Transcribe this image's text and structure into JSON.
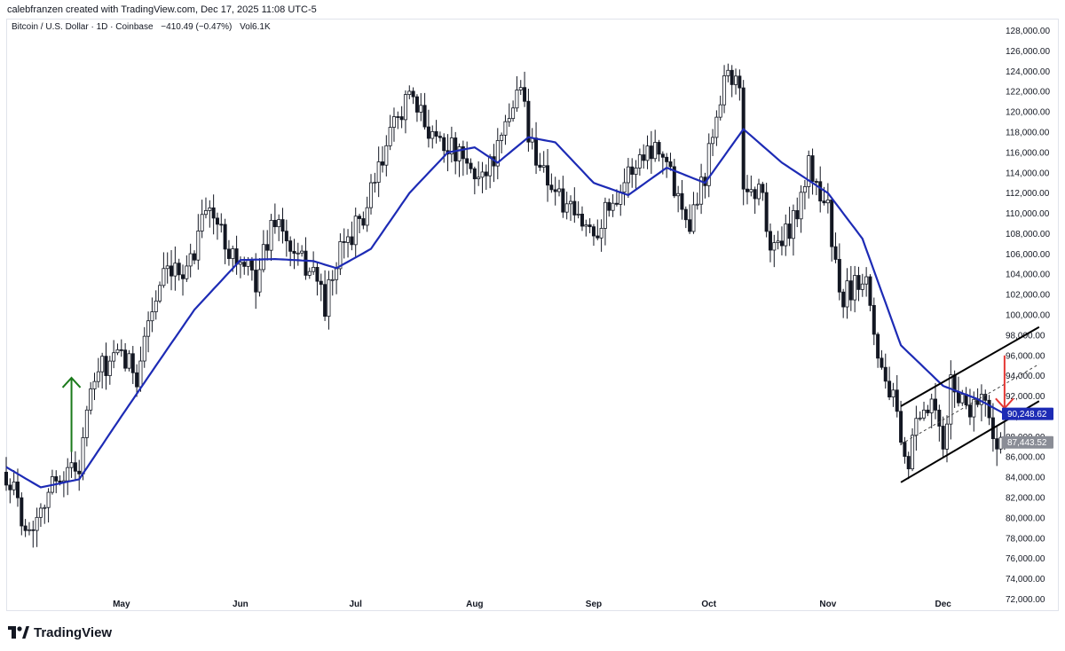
{
  "header": {
    "credit": "calebfranzen created with TradingView.com, Dec 17, 2025 11:08 UTC-5"
  },
  "legend": {
    "symbol": "Bitcoin / U.S. Dollar · 1D · Coinbase",
    "change": "−410.49 (−0.47%)",
    "volume_label": "Vol",
    "volume_value": "6.1K"
  },
  "footer": {
    "brand": "TradingView"
  },
  "colors": {
    "up": "#131722",
    "down": "#131722",
    "ma": "#1d2bb5",
    "arrow_up": "#1b7a1b",
    "arrow_down": "#e53935",
    "ma_tag": "#1d2bb5",
    "price_tag": "#8a8d96"
  },
  "price_tags": {
    "ma": "90,248.62",
    "last": "87,443.52"
  },
  "chart_data": {
    "type": "candlestick",
    "title": "",
    "x_ticks": [
      "May",
      "Jun",
      "Jul",
      "Aug",
      "Sep",
      "Oct",
      "Nov",
      "Dec"
    ],
    "y_ticks": [
      "72,000.00",
      "74,000.00",
      "76,000.00",
      "78,000.00",
      "80,000.00",
      "82,000.00",
      "84,000.00",
      "86,000.00",
      "88,000.00",
      "90,000.00",
      "92,000.00",
      "94,000.00",
      "96,000.00",
      "98,000.00",
      "100,000.00",
      "102,000.00",
      "104,000.00",
      "106,000.00",
      "108,000.00",
      "110,000.00",
      "112,000.00",
      "114,000.00",
      "116,000.00",
      "118,000.00",
      "120,000.00",
      "122,000.00",
      "124,000.00",
      "126,000.00",
      "128,000.00"
    ],
    "ylim": [
      70900,
      129100
    ],
    "date_range": [
      "2025-04-01",
      "2025-12-17"
    ],
    "close_path": [
      [
        "2025-04-01",
        84500
      ],
      [
        "2025-04-07",
        78500
      ],
      [
        "2025-04-10",
        81500
      ],
      [
        "2025-04-15",
        84300
      ],
      [
        "2025-04-20",
        85200
      ],
      [
        "2025-04-22",
        90500
      ],
      [
        "2025-04-25",
        94500
      ],
      [
        "2025-05-01",
        95800
      ],
      [
        "2025-05-05",
        94200
      ],
      [
        "2025-05-08",
        99500
      ],
      [
        "2025-05-12",
        103500
      ],
      [
        "2025-05-15",
        103800
      ],
      [
        "2025-05-20",
        106000
      ],
      [
        "2025-05-22",
        111000
      ],
      [
        "2025-05-25",
        109500
      ],
      [
        "2025-06-01",
        104800
      ],
      [
        "2025-06-05",
        103500
      ],
      [
        "2025-06-10",
        109800
      ],
      [
        "2025-06-15",
        105500
      ],
      [
        "2025-06-20",
        104500
      ],
      [
        "2025-06-23",
        101000
      ],
      [
        "2025-06-28",
        107200
      ],
      [
        "2025-07-03",
        109500
      ],
      [
        "2025-07-10",
        117500
      ],
      [
        "2025-07-14",
        121500
      ],
      [
        "2025-07-20",
        118500
      ],
      [
        "2025-07-25",
        116800
      ],
      [
        "2025-08-01",
        113500
      ],
      [
        "2025-08-04",
        114500
      ],
      [
        "2025-08-08",
        116800
      ],
      [
        "2025-08-13",
        123300
      ],
      [
        "2025-08-15",
        117500
      ],
      [
        "2025-08-20",
        113500
      ],
      [
        "2025-08-25",
        110200
      ],
      [
        "2025-09-01",
        108200
      ],
      [
        "2025-09-05",
        110800
      ],
      [
        "2025-09-10",
        113800
      ],
      [
        "2025-09-14",
        116000
      ],
      [
        "2025-09-18",
        117000
      ],
      [
        "2025-09-22",
        112800
      ],
      [
        "2025-09-26",
        109500
      ],
      [
        "2025-09-30",
        114000
      ],
      [
        "2025-10-03",
        120500
      ],
      [
        "2025-10-06",
        124500
      ],
      [
        "2025-10-09",
        121500
      ],
      [
        "2025-10-10",
        112800
      ],
      [
        "2025-10-15",
        111800
      ],
      [
        "2025-10-17",
        106500
      ],
      [
        "2025-10-22",
        108000
      ],
      [
        "2025-10-27",
        114500
      ],
      [
        "2025-11-01",
        110500
      ],
      [
        "2025-11-04",
        101500
      ],
      [
        "2025-11-07",
        102500
      ],
      [
        "2025-11-11",
        104500
      ],
      [
        "2025-11-14",
        96000
      ],
      [
        "2025-11-18",
        91500
      ],
      [
        "2025-11-21",
        84800
      ],
      [
        "2025-11-24",
        88500
      ],
      [
        "2025-11-28",
        91200
      ],
      [
        "2025-12-01",
        86500
      ],
      [
        "2025-12-03",
        93200
      ],
      [
        "2025-12-08",
        90800
      ],
      [
        "2025-12-11",
        92500
      ],
      [
        "2025-12-14",
        88200
      ],
      [
        "2025-12-17",
        87443
      ]
    ],
    "series": [
      {
        "name": "",
        "type": "moving_average",
        "points": [
          [
            "2025-04-01",
            85000
          ],
          [
            "2025-04-10",
            83000
          ],
          [
            "2025-04-20",
            83800
          ],
          [
            "2025-05-01",
            90000
          ],
          [
            "2025-05-10",
            95000
          ],
          [
            "2025-05-20",
            100500
          ],
          [
            "2025-06-01",
            105400
          ],
          [
            "2025-06-10",
            105500
          ],
          [
            "2025-06-20",
            105300
          ],
          [
            "2025-06-26",
            104600
          ],
          [
            "2025-07-05",
            106500
          ],
          [
            "2025-07-15",
            112000
          ],
          [
            "2025-07-25",
            116000
          ],
          [
            "2025-08-01",
            116500
          ],
          [
            "2025-08-07",
            115000
          ],
          [
            "2025-08-15",
            117500
          ],
          [
            "2025-08-22",
            117000
          ],
          [
            "2025-09-01",
            113000
          ],
          [
            "2025-09-10",
            111800
          ],
          [
            "2025-09-20",
            114500
          ],
          [
            "2025-09-30",
            113000
          ],
          [
            "2025-10-10",
            118300
          ],
          [
            "2025-10-20",
            115000
          ],
          [
            "2025-11-01",
            112000
          ],
          [
            "2025-11-10",
            107500
          ],
          [
            "2025-11-20",
            97000
          ],
          [
            "2025-12-01",
            93000
          ],
          [
            "2025-12-10",
            91700
          ],
          [
            "2025-12-17",
            90249
          ]
        ]
      }
    ],
    "annotations": {
      "channel_lower": [
        [
          "2025-11-20",
          83500
        ],
        [
          "2025-12-26",
          91500
        ]
      ],
      "channel_upper": [
        [
          "2025-11-20",
          91000
        ],
        [
          "2025-12-26",
          98800
        ]
      ],
      "channel_mid": [
        [
          "2025-11-20",
          87250
        ],
        [
          "2025-12-26",
          95150
        ]
      ],
      "arrow_up": {
        "date": "2025-04-18",
        "from": 86500,
        "to": 93800
      },
      "arrow_down": {
        "date": "2025-12-17",
        "from": 96000,
        "to": 90800
      }
    }
  }
}
